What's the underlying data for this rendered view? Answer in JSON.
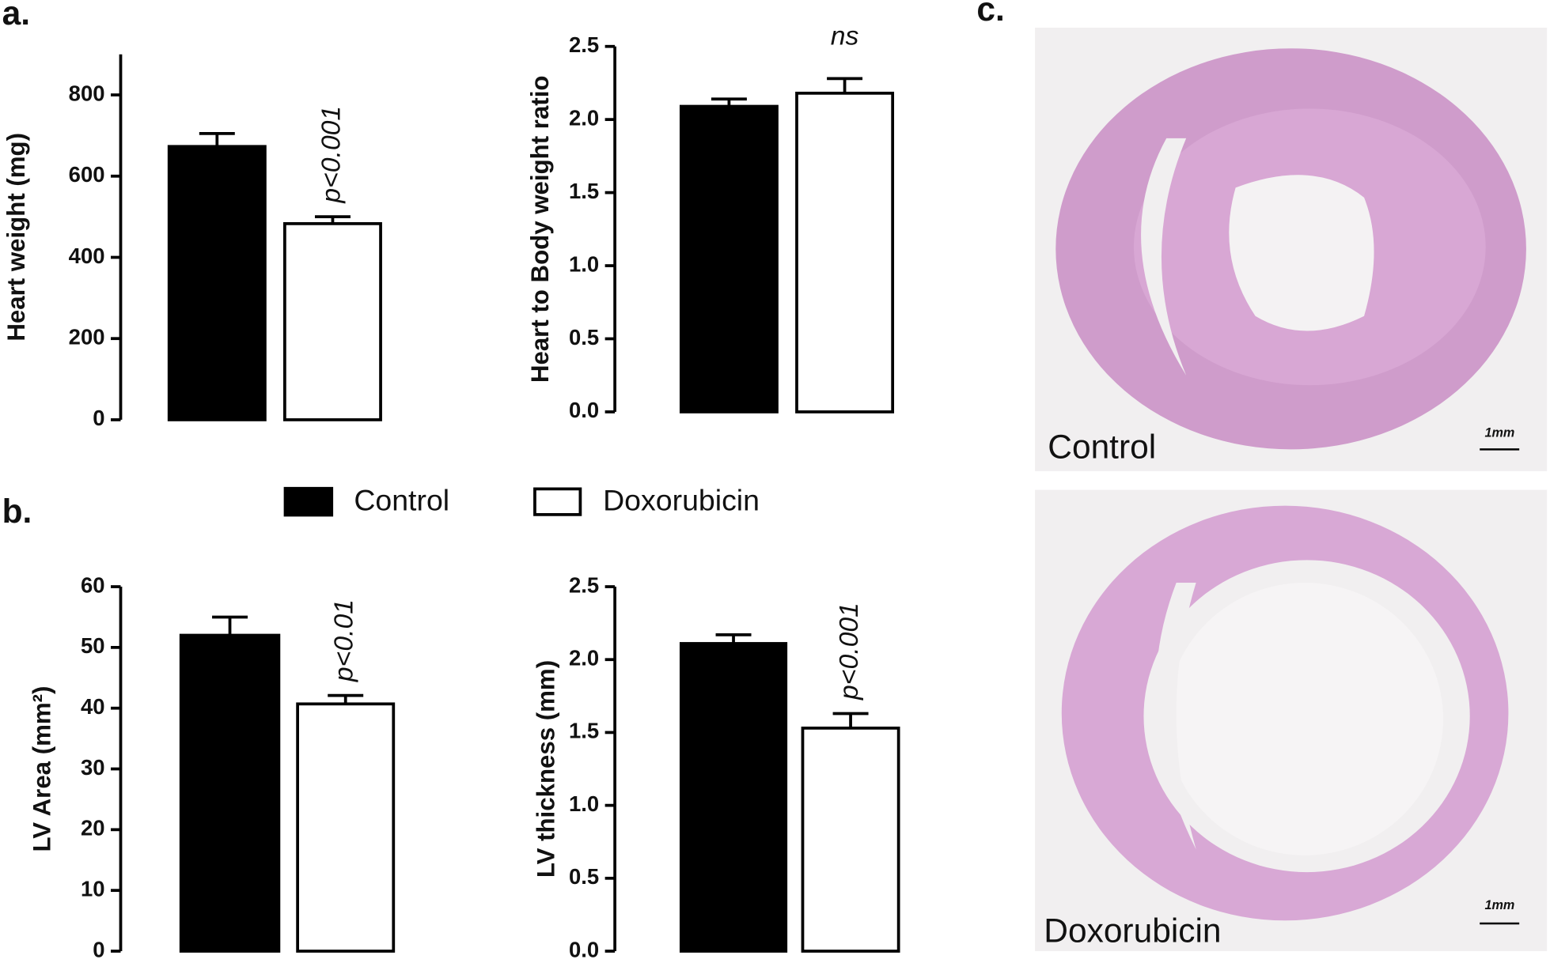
{
  "panels": [
    "a.",
    "b.",
    "c."
  ],
  "legend": [
    {
      "name": "Control",
      "color": "#000000"
    },
    {
      "name": "Doxorubicin",
      "color": "#ffffff"
    }
  ],
  "chart_data": [
    {
      "type": "bar",
      "ylabel": "Heart weight (mg)",
      "values": [
        673,
        483
      ],
      "errors": [
        32,
        17
      ],
      "annotation": "p<0.001",
      "ylim": [
        0,
        900
      ],
      "yticks": [
        0,
        200,
        400,
        600,
        800
      ]
    },
    {
      "type": "bar",
      "ylabel": "Heart to Body weight ratio",
      "values": [
        2.09,
        2.18
      ],
      "errors": [
        0.05,
        0.1
      ],
      "annotation": "ns",
      "ylim": [
        0,
        2.5
      ],
      "yticks": [
        {
          "value": 0,
          "label": "0.0"
        },
        0.5,
        {
          "value": 1,
          "label": "1.0"
        },
        1.5,
        {
          "value": 2,
          "label": "2.0"
        },
        2.5
      ]
    },
    {
      "type": "bar",
      "ylabel": "LV Area (mm²)",
      "values": [
        52,
        40.7
      ],
      "errors": [
        3,
        1.4
      ],
      "annotation": "p<0.01",
      "ylim": [
        0,
        60
      ],
      "yticks": [
        0,
        10,
        20,
        30,
        40,
        50,
        60
      ]
    },
    {
      "type": "bar",
      "ylabel": "LV thickness (mm)",
      "values": [
        2.11,
        1.53
      ],
      "errors": [
        0.06,
        0.1
      ],
      "annotation": "p<0.001",
      "ylim": [
        0,
        2.5
      ],
      "yticks": [
        {
          "value": 0,
          "label": "0.0"
        },
        0.5,
        {
          "value": 1,
          "label": "1.0"
        },
        1.5,
        {
          "value": 2,
          "label": "2.0"
        },
        2.5
      ]
    }
  ],
  "images": [
    {
      "label": "Control",
      "scale": "1mm"
    },
    {
      "label": "Doxorubicin",
      "scale": "1mm"
    }
  ]
}
